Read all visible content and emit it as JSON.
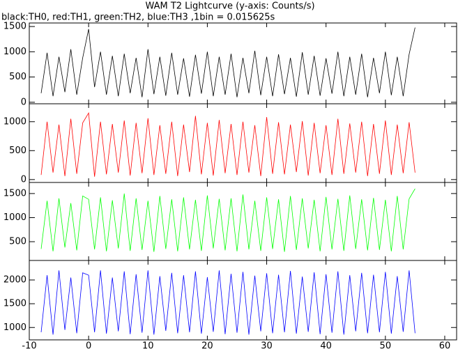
{
  "chart_data": [
    {
      "type": "line",
      "title": "WAM T2 Lightcurve (y-axis: Counts/s)",
      "subtitle": "black:TH0, red:TH1, green:TH2, blue:TH3 ,1bin = 0.015625s",
      "x": [
        -8,
        -7,
        -6,
        -5,
        -4,
        -3,
        -2,
        -1,
        0,
        1,
        2,
        3,
        4,
        5,
        6,
        7,
        8,
        9,
        10,
        11,
        12,
        13,
        14,
        15,
        16,
        17,
        18,
        19,
        20,
        21,
        22,
        23,
        24,
        25,
        26,
        27,
        28,
        29,
        30,
        31,
        32,
        33,
        34,
        35,
        36,
        37,
        38,
        39,
        40,
        41,
        42,
        43,
        44,
        45,
        46,
        47,
        48,
        49,
        50,
        51,
        52,
        53,
        54,
        55
      ],
      "series": [
        {
          "color": "#000000",
          "values": [
            180,
            980,
            120,
            900,
            200,
            1050,
            150,
            880,
            1450,
            300,
            1000,
            150,
            920,
            120,
            960,
            180,
            880,
            100,
            1050,
            160,
            900,
            130,
            980,
            150,
            870,
            110,
            940,
            170,
            1000,
            120,
            900,
            150,
            960,
            100,
            880,
            180,
            1020,
            140,
            900,
            120,
            950,
            160,
            880,
            110,
            990,
            150,
            920,
            130,
            870,
            170,
            1000,
            120,
            900,
            150,
            960,
            100,
            880,
            180,
            1000,
            140,
            900,
            120,
            950,
            1480
          ]
        }
      ],
      "xlim": [
        -10,
        62
      ],
      "xticks": [
        -10,
        0,
        10,
        20,
        30,
        40,
        50,
        60
      ],
      "ylim": [
        -30,
        1570
      ],
      "yticks": [
        0,
        500,
        1000,
        1500
      ]
    },
    {
      "type": "line",
      "x": [
        -8,
        -7,
        -6,
        -5,
        -4,
        -3,
        -2,
        -1,
        0,
        1,
        2,
        3,
        4,
        5,
        6,
        7,
        8,
        9,
        10,
        11,
        12,
        13,
        14,
        15,
        16,
        17,
        18,
        19,
        20,
        21,
        22,
        23,
        24,
        25,
        26,
        27,
        28,
        29,
        30,
        31,
        32,
        33,
        34,
        35,
        36,
        37,
        38,
        39,
        40,
        41,
        42,
        43,
        44,
        45,
        46,
        47,
        48,
        49,
        50,
        51,
        52,
        53,
        54,
        55
      ],
      "series": [
        {
          "color": "#ff0000",
          "values": [
            80,
            1000,
            120,
            950,
            60,
            1050,
            100,
            980,
            1150,
            50,
            1000,
            90,
            960,
            120,
            1020,
            70,
            980,
            110,
            1060,
            80,
            940,
            100,
            1000,
            60,
            950,
            130,
            1100,
            90,
            980,
            70,
            1030,
            110,
            960,
            80,
            1000,
            120,
            940,
            60,
            1080,
            100,
            990,
            90,
            950,
            130,
            1010,
            70,
            980,
            110,
            940,
            80,
            1050,
            100,
            970,
            120,
            1000,
            60,
            960,
            100,
            1020,
            80,
            950,
            110,
            990,
            120
          ]
        }
      ],
      "xlim": [
        -10,
        62
      ],
      "xticks": [
        -10,
        0,
        10,
        20,
        30,
        40,
        50,
        60
      ],
      "ylim": [
        -50,
        1310
      ],
      "yticks": [
        0,
        500,
        1000
      ]
    },
    {
      "type": "line",
      "x": [
        -8,
        -7,
        -6,
        -5,
        -4,
        -3,
        -2,
        -1,
        0,
        1,
        2,
        3,
        4,
        5,
        6,
        7,
        8,
        9,
        10,
        11,
        12,
        13,
        14,
        15,
        16,
        17,
        18,
        19,
        20,
        21,
        22,
        23,
        24,
        25,
        26,
        27,
        28,
        29,
        30,
        31,
        32,
        33,
        34,
        35,
        36,
        37,
        38,
        39,
        40,
        41,
        42,
        43,
        44,
        45,
        46,
        47,
        48,
        49,
        50,
        51,
        52,
        53,
        54,
        55
      ],
      "series": [
        {
          "color": "#00ff00",
          "values": [
            350,
            1350,
            300,
            1400,
            380,
            1300,
            320,
            1450,
            1380,
            340,
            1420,
            300,
            1360,
            360,
            1500,
            310,
            1400,
            330,
            1350,
            290,
            1450,
            350,
            1380,
            300,
            1420,
            340,
            1370,
            310,
            1460,
            360,
            1390,
            320,
            1400,
            300,
            1480,
            340,
            1350,
            310,
            1420,
            350,
            1380,
            290,
            1450,
            330,
            1400,
            360,
            1370,
            300,
            1430,
            340,
            1390,
            310,
            1460,
            350,
            1380,
            320,
            1410,
            330,
            1370,
            300,
            1450,
            340,
            1390,
            1600
          ]
        }
      ],
      "xlim": [
        -10,
        62
      ],
      "xticks": [
        -10,
        0,
        10,
        20,
        30,
        40,
        50,
        60
      ],
      "ylim": [
        110,
        1730
      ],
      "yticks": [
        500,
        1000,
        1500
      ]
    },
    {
      "type": "line",
      "x": [
        -8,
        -7,
        -6,
        -5,
        -4,
        -3,
        -2,
        -1,
        0,
        1,
        2,
        3,
        4,
        5,
        6,
        7,
        8,
        9,
        10,
        11,
        12,
        13,
        14,
        15,
        16,
        17,
        18,
        19,
        20,
        21,
        22,
        23,
        24,
        25,
        26,
        27,
        28,
        29,
        30,
        31,
        32,
        33,
        34,
        35,
        36,
        37,
        38,
        39,
        40,
        41,
        42,
        43,
        44,
        45,
        46,
        47,
        48,
        49,
        50,
        51,
        52,
        53,
        54,
        55
      ],
      "series": [
        {
          "color": "#0000ff",
          "values": [
            900,
            2100,
            850,
            2200,
            950,
            2050,
            880,
            2150,
            2100,
            900,
            2200,
            870,
            2050,
            920,
            2180,
            860,
            2120,
            890,
            2200,
            850,
            2080,
            930,
            2150,
            880,
            2100,
            900,
            2180,
            870,
            2060,
            910,
            2200,
            860,
            2130,
            890,
            2170,
            850,
            2090,
            920,
            2140,
            880,
            2110,
            900,
            2190,
            870,
            2070,
            910,
            2160,
            860,
            2120,
            890,
            2180,
            850,
            2100,
            920,
            2150,
            880,
            2110,
            900,
            2170,
            870,
            2080,
            910,
            2200,
            880
          ]
        }
      ],
      "xlim": [
        -10,
        62
      ],
      "xticks": [
        -10,
        0,
        10,
        20,
        30,
        40,
        50,
        60
      ],
      "ylim": [
        740,
        2410
      ],
      "yticks": [
        1000,
        1500,
        2000
      ]
    }
  ]
}
